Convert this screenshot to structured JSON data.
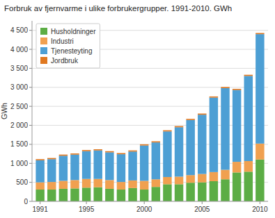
{
  "chart_data": {
    "type": "bar",
    "stacked": true,
    "title": "Forbruk av fjernvarme i ulike forbrukergrupper. 1991-2010. GWh",
    "ylabel": "GWh",
    "x": [
      1991,
      1992,
      1993,
      1994,
      1995,
      1996,
      1997,
      1998,
      1999,
      2000,
      2001,
      2002,
      2003,
      2004,
      2005,
      2006,
      2007,
      2008,
      2009,
      2010
    ],
    "xlim": [
      1990.3,
      2010.7
    ],
    "xticks": [
      1991,
      1995,
      2000,
      2005,
      2010
    ],
    "ylim": [
      0,
      4750
    ],
    "yticks": [
      0,
      500,
      {
        "value": 1000,
        "label": "1 000"
      },
      {
        "value": 1500,
        "label": "1 500"
      },
      {
        "value": 2000,
        "label": "2 000"
      },
      {
        "value": 2500,
        "label": "2 500"
      },
      {
        "value": 3000,
        "label": "3 000"
      },
      {
        "value": 3500,
        "label": "3 500"
      },
      {
        "value": 4000,
        "label": "4 000"
      },
      {
        "value": 4500,
        "label": "4 500"
      }
    ],
    "grid": true,
    "legend": "upper left",
    "series": [
      {
        "name": "Husholdninger",
        "color": "#5cad45",
        "values": [
          310,
          310,
          330,
          340,
          360,
          370,
          330,
          310,
          350,
          310,
          380,
          450,
          450,
          490,
          500,
          530,
          580,
          760,
          780,
          1100
        ]
      },
      {
        "name": "Industri",
        "color": "#f0a050",
        "values": [
          190,
          200,
          210,
          220,
          230,
          220,
          230,
          200,
          200,
          230,
          200,
          190,
          200,
          200,
          220,
          240,
          250,
          280,
          280,
          420
        ]
      },
      {
        "name": "Tjenesteyting",
        "color": "#4d9fd4",
        "values": [
          580,
          600,
          660,
          670,
          730,
          750,
          730,
          730,
          760,
          930,
          970,
          1200,
          1300,
          1450,
          1560,
          1960,
          2150,
          1890,
          2240,
          2880
        ]
      },
      {
        "name": "Jordbruk",
        "color": "#e07820",
        "values": [
          30,
          30,
          30,
          30,
          30,
          30,
          30,
          30,
          30,
          30,
          30,
          30,
          30,
          30,
          30,
          30,
          30,
          30,
          30,
          30
        ]
      }
    ]
  }
}
